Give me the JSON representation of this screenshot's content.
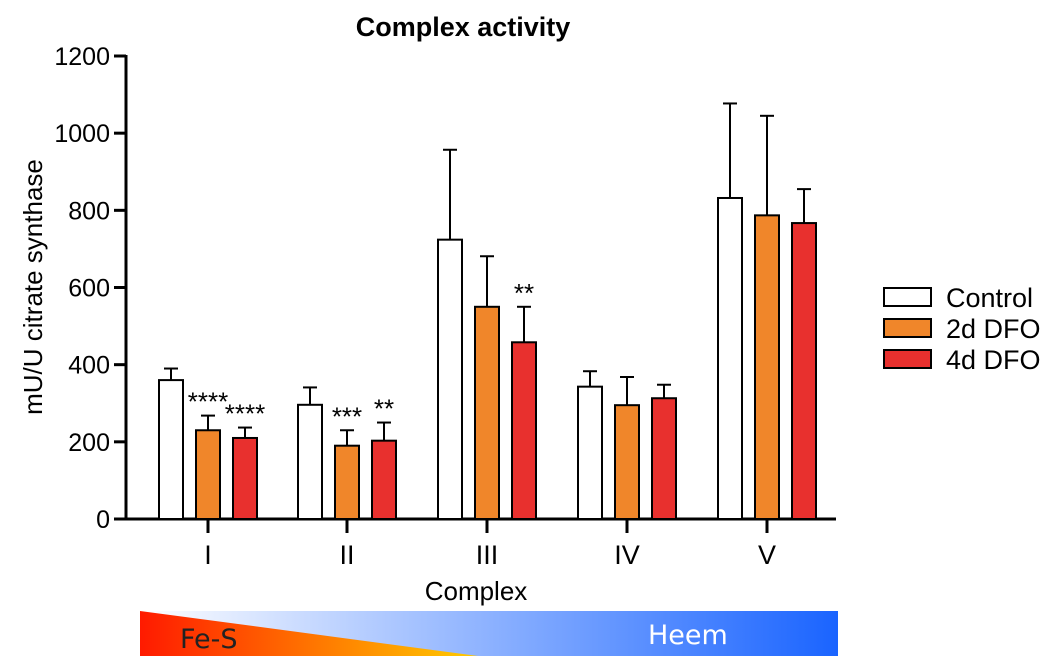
{
  "chart_data": {
    "type": "bar",
    "title": "Complex activity",
    "xlabel": "Complex",
    "ylabel": "mU/U citrate synthase",
    "ylim": [
      0,
      1200
    ],
    "yticks": [
      0,
      200,
      400,
      600,
      800,
      1000,
      1200
    ],
    "categories": [
      "I",
      "II",
      "III",
      "IV",
      "V"
    ],
    "series": [
      {
        "name": "Control",
        "color": "#ffffff",
        "values": [
          360,
          296,
          724,
          343,
          832
        ],
        "errors": [
          30,
          45,
          233,
          40,
          245
        ],
        "significance": [
          "",
          "",
          "",
          "",
          ""
        ]
      },
      {
        "name": "2d DFO",
        "color": "#f0862a",
        "values": [
          230,
          190,
          550,
          295,
          787
        ],
        "errors": [
          38,
          40,
          131,
          73,
          258
        ],
        "significance": [
          "****",
          "***",
          "",
          "",
          ""
        ]
      },
      {
        "name": "4d DFO",
        "color": "#e8302e",
        "values": [
          210,
          203,
          458,
          313,
          767
        ],
        "errors": [
          27,
          47,
          92,
          35,
          88
        ],
        "significance": [
          "****",
          "**",
          "**",
          "",
          ""
        ]
      }
    ],
    "legend_position": "right",
    "grid": false
  },
  "gradient_bar": {
    "left_label": "Fe-S",
    "right_label": "Heem",
    "left_color": "#ff1a00",
    "right_color": "#1a64ff"
  }
}
